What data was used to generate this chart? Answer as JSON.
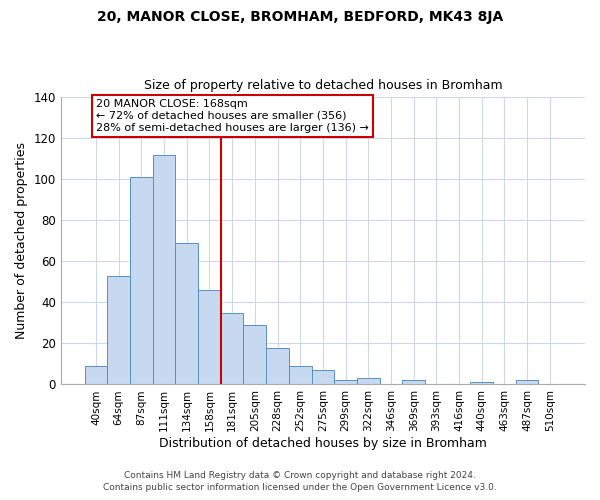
{
  "title1": "20, MANOR CLOSE, BROMHAM, BEDFORD, MK43 8JA",
  "title2": "Size of property relative to detached houses in Bromham",
  "xlabel": "Distribution of detached houses by size in Bromham",
  "ylabel": "Number of detached properties",
  "bar_labels": [
    "40sqm",
    "64sqm",
    "87sqm",
    "111sqm",
    "134sqm",
    "158sqm",
    "181sqm",
    "205sqm",
    "228sqm",
    "252sqm",
    "275sqm",
    "299sqm",
    "322sqm",
    "346sqm",
    "369sqm",
    "393sqm",
    "416sqm",
    "440sqm",
    "463sqm",
    "487sqm",
    "510sqm"
  ],
  "bar_heights": [
    9,
    53,
    101,
    112,
    69,
    46,
    35,
    29,
    18,
    9,
    7,
    2,
    3,
    0,
    2,
    0,
    0,
    1,
    0,
    2,
    0
  ],
  "bar_color": "#c6d9f0",
  "bar_edge_color": "#5a8fc2",
  "vline_x": 6.0,
  "vline_color": "#cc0000",
  "annotation_text": "20 MANOR CLOSE: 168sqm\n← 72% of detached houses are smaller (356)\n28% of semi-detached houses are larger (136) →",
  "annotation_box_color": "#ffffff",
  "annotation_box_edge_color": "#cc0000",
  "ylim": [
    0,
    140
  ],
  "yticks": [
    0,
    20,
    40,
    60,
    80,
    100,
    120,
    140
  ],
  "footer1": "Contains HM Land Registry data © Crown copyright and database right 2024.",
  "footer2": "Contains public sector information licensed under the Open Government Licence v3.0.",
  "background_color": "#ffffff",
  "grid_color": "#cdd9e8"
}
